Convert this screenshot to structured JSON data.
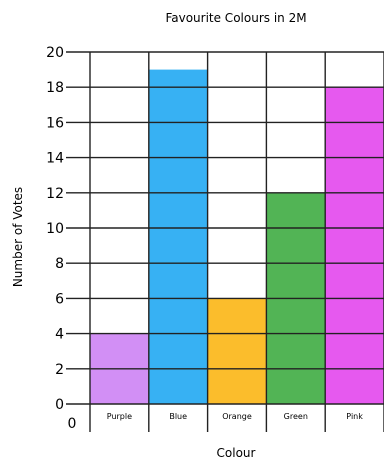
{
  "chart_data": {
    "type": "bar",
    "title": "Favourite Colours in 2M",
    "xlabel": "Colour",
    "ylabel": "Number of Votes",
    "origin_label": "0",
    "categories": [
      "Purple",
      "Blue",
      "Orange",
      "Green",
      "Pink"
    ],
    "values": [
      4,
      19,
      6,
      12,
      18
    ],
    "colors": [
      "#d28ff5",
      "#37b1f3",
      "#fbbd2c",
      "#52b455",
      "#e659ef"
    ],
    "ylim": [
      0,
      20
    ],
    "yticks": [
      "0",
      "2",
      "4",
      "6",
      "8",
      "10",
      "12",
      "14",
      "16",
      "18",
      "20"
    ],
    "grid": true,
    "legend": "none"
  }
}
